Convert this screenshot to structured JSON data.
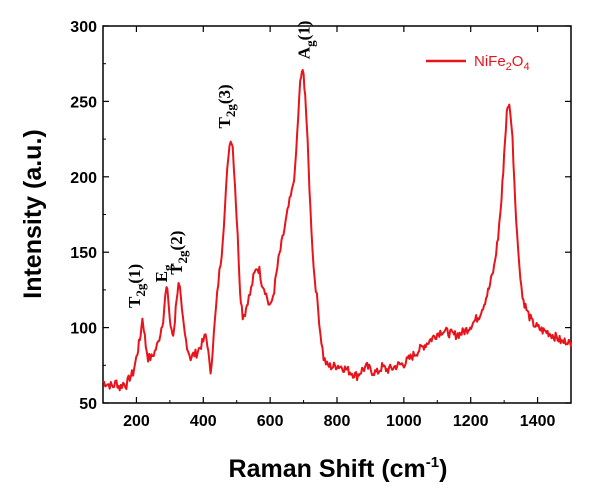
{
  "chart_data": {
    "type": "line",
    "xlabel_main": "Raman Shift (cm",
    "xlabel_sup": "-1",
    "xlabel_end": ")",
    "ylabel": "Intensity (a.u.)",
    "xlim": [
      100,
      1500
    ],
    "ylim": [
      50,
      300
    ],
    "xticks": [
      200,
      400,
      600,
      800,
      1000,
      1200,
      1400
    ],
    "yticks": [
      50,
      100,
      150,
      200,
      250,
      300
    ],
    "grid": false,
    "legend_position": "top-right",
    "legend": {
      "main": "NiFe",
      "sub1": "2",
      "mid": "O",
      "sub2": "4"
    },
    "series": [
      {
        "name": "NiFe2O4",
        "color": "#e8141c",
        "points": [
          [
            100,
            64
          ],
          [
            110,
            63
          ],
          [
            120,
            62
          ],
          [
            130,
            61
          ],
          [
            140,
            64
          ],
          [
            150,
            60
          ],
          [
            160,
            63
          ],
          [
            170,
            62
          ],
          [
            180,
            67
          ],
          [
            190,
            70
          ],
          [
            200,
            80
          ],
          [
            205,
            86
          ],
          [
            210,
            92
          ],
          [
            215,
            100
          ],
          [
            218,
            107
          ],
          [
            222,
            100
          ],
          [
            228,
            88
          ],
          [
            235,
            80
          ],
          [
            245,
            80
          ],
          [
            255,
            84
          ],
          [
            265,
            90
          ],
          [
            272,
            97
          ],
          [
            280,
            106
          ],
          [
            286,
            120
          ],
          [
            290,
            126
          ],
          [
            295,
            120
          ],
          [
            300,
            105
          ],
          [
            305,
            97
          ],
          [
            310,
            95
          ],
          [
            315,
            105
          ],
          [
            320,
            120
          ],
          [
            326,
            128
          ],
          [
            330,
            125
          ],
          [
            336,
            110
          ],
          [
            345,
            95
          ],
          [
            355,
            85
          ],
          [
            362,
            80
          ],
          [
            370,
            82
          ],
          [
            380,
            83
          ],
          [
            390,
            87
          ],
          [
            400,
            91
          ],
          [
            407,
            95
          ],
          [
            412,
            90
          ],
          [
            418,
            76
          ],
          [
            422,
            71
          ],
          [
            428,
            85
          ],
          [
            435,
            105
          ],
          [
            445,
            130
          ],
          [
            455,
            150
          ],
          [
            465,
            180
          ],
          [
            475,
            215
          ],
          [
            482,
            226
          ],
          [
            488,
            220
          ],
          [
            495,
            195
          ],
          [
            503,
            160
          ],
          [
            510,
            125
          ],
          [
            518,
            108
          ],
          [
            525,
            110
          ],
          [
            533,
            118
          ],
          [
            540,
            122
          ],
          [
            550,
            133
          ],
          [
            560,
            140
          ],
          [
            568,
            138
          ],
          [
            575,
            130
          ],
          [
            585,
            125
          ],
          [
            595,
            116
          ],
          [
            602,
            114
          ],
          [
            612,
            125
          ],
          [
            625,
            145
          ],
          [
            640,
            162
          ],
          [
            655,
            180
          ],
          [
            665,
            190
          ],
          [
            675,
            205
          ],
          [
            684,
            240
          ],
          [
            690,
            262
          ],
          [
            695,
            270
          ],
          [
            700,
            267
          ],
          [
            705,
            255
          ],
          [
            712,
            222
          ],
          [
            720,
            180
          ],
          [
            730,
            140
          ],
          [
            740,
            120
          ],
          [
            750,
            97
          ],
          [
            760,
            80
          ],
          [
            770,
            75
          ],
          [
            785,
            74
          ],
          [
            800,
            75
          ],
          [
            815,
            74
          ],
          [
            830,
            72
          ],
          [
            845,
            70
          ],
          [
            860,
            68
          ],
          [
            875,
            72
          ],
          [
            890,
            74
          ],
          [
            905,
            71
          ],
          [
            920,
            70
          ],
          [
            935,
            74
          ],
          [
            950,
            72
          ],
          [
            965,
            73
          ],
          [
            980,
            75
          ],
          [
            1000,
            76
          ],
          [
            1020,
            80
          ],
          [
            1040,
            84
          ],
          [
            1060,
            88
          ],
          [
            1080,
            92
          ],
          [
            1100,
            96
          ],
          [
            1115,
            98
          ],
          [
            1130,
            97
          ],
          [
            1150,
            95
          ],
          [
            1170,
            96
          ],
          [
            1190,
            99
          ],
          [
            1210,
            104
          ],
          [
            1225,
            108
          ],
          [
            1240,
            116
          ],
          [
            1255,
            126
          ],
          [
            1270,
            140
          ],
          [
            1282,
            160
          ],
          [
            1292,
            185
          ],
          [
            1300,
            215
          ],
          [
            1308,
            242
          ],
          [
            1313,
            248
          ],
          [
            1318,
            245
          ],
          [
            1325,
            225
          ],
          [
            1333,
            185
          ],
          [
            1342,
            150
          ],
          [
            1355,
            120
          ],
          [
            1370,
            110
          ],
          [
            1385,
            103
          ],
          [
            1400,
            100
          ],
          [
            1415,
            98
          ],
          [
            1430,
            97
          ],
          [
            1445,
            95
          ],
          [
            1460,
            93
          ],
          [
            1475,
            90
          ],
          [
            1490,
            92
          ],
          [
            1500,
            87
          ]
        ]
      }
    ],
    "annotations": [
      {
        "sub": "2g",
        "suffix": "(1)",
        "x": 210,
        "y": 113
      },
      {
        "base": "E",
        "sub": "g",
        "suffix": "",
        "x": 292,
        "y": 130
      },
      {
        "sub": "2g",
        "suffix": "(2)",
        "x": 336,
        "y": 135
      },
      {
        "sub": "2g",
        "suffix": "(3)",
        "x": 480,
        "y": 232
      },
      {
        "base": "A",
        "sub": "g",
        "suffix": "(1)",
        "x": 717,
        "y": 278
      }
    ],
    "annotation_T": "T"
  }
}
